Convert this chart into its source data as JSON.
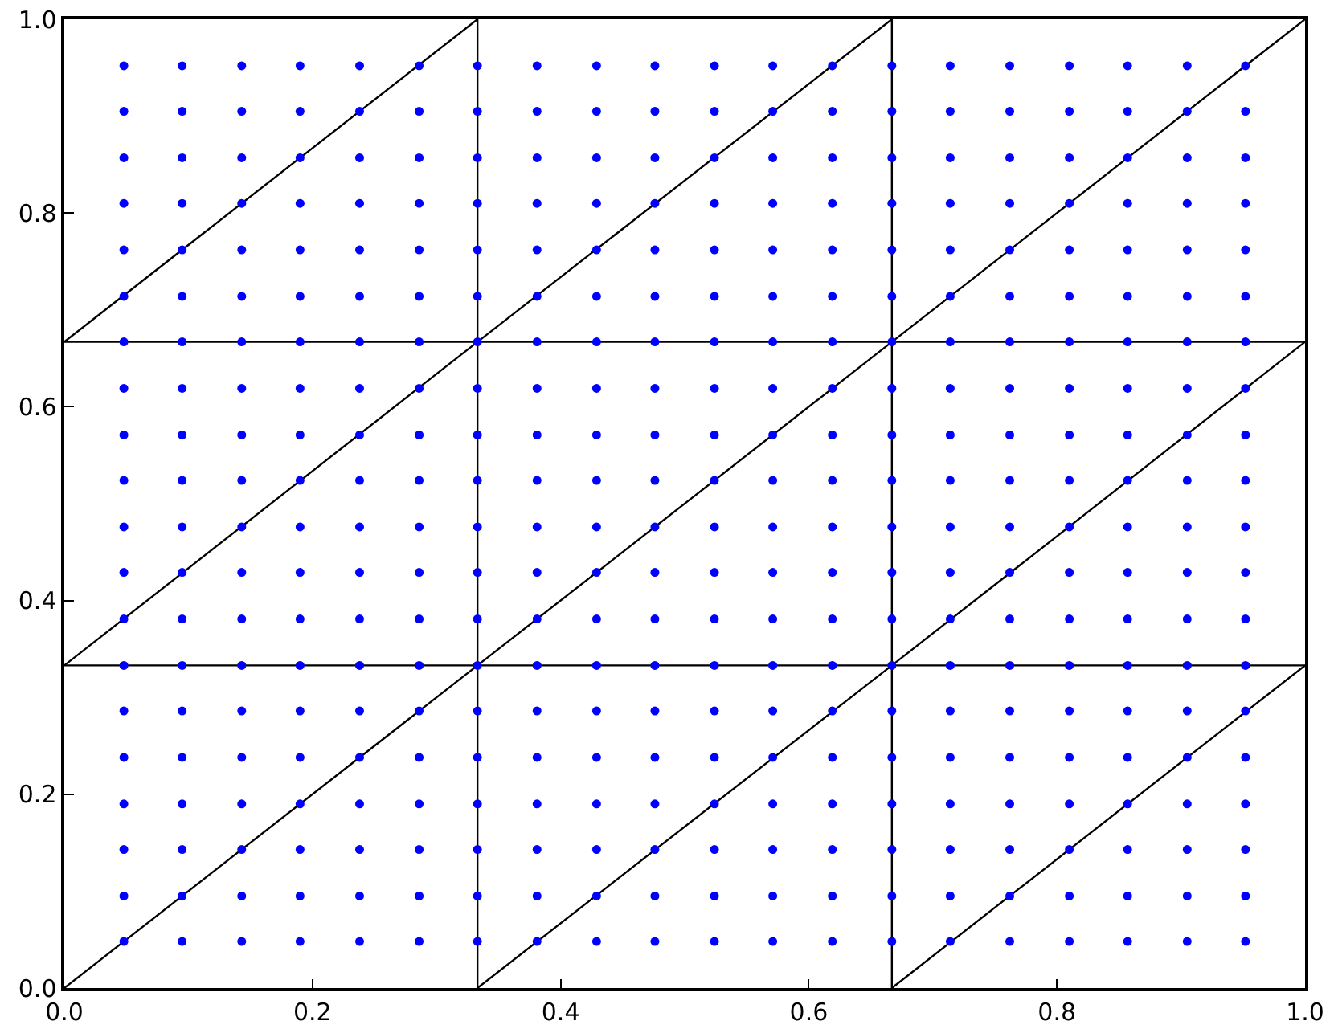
{
  "chart_data": {
    "type": "scatter",
    "x": [
      0.048,
      0.095,
      0.143,
      0.19,
      0.238,
      0.286,
      0.333,
      0.381,
      0.429,
      0.476,
      0.524,
      0.571,
      0.619,
      0.667,
      0.714,
      0.762,
      0.81,
      0.857,
      0.905,
      0.952
    ],
    "marker": "circle",
    "grid": false,
    "xlim": [
      0,
      1
    ],
    "ylim": [
      0,
      1
    ],
    "xticks": [
      {
        "value": 0,
        "label": "0.0"
      },
      0.2,
      0.4,
      0.6,
      0.8,
      {
        "value": 1,
        "label": "1.0"
      }
    ],
    "yticks": [
      {
        "value": 0,
        "label": "0.0"
      },
      0.2,
      0.4,
      0.6,
      0.8,
      {
        "value": 1,
        "label": "1.0"
      }
    ],
    "series": [
      {
        "color": "#0000ff",
        "values": [
          0.048,
          0.048,
          0.048,
          0.048,
          0.048,
          0.048,
          0.048,
          0.048,
          0.048,
          0.048,
          0.048,
          0.048,
          0.048,
          0.048,
          0.048,
          0.048,
          0.048,
          0.048,
          0.048,
          0.048
        ]
      },
      {
        "color": "#0000ff",
        "values": [
          0.095,
          0.095,
          0.095,
          0.095,
          0.095,
          0.095,
          0.095,
          0.095,
          0.095,
          0.095,
          0.095,
          0.095,
          0.095,
          0.095,
          0.095,
          0.095,
          0.095,
          0.095,
          0.095,
          0.095
        ]
      },
      {
        "color": "#0000ff",
        "values": [
          0.143,
          0.143,
          0.143,
          0.143,
          0.143,
          0.143,
          0.143,
          0.143,
          0.143,
          0.143,
          0.143,
          0.143,
          0.143,
          0.143,
          0.143,
          0.143,
          0.143,
          0.143,
          0.143,
          0.143
        ]
      },
      {
        "color": "#0000ff",
        "values": [
          0.19,
          0.19,
          0.19,
          0.19,
          0.19,
          0.19,
          0.19,
          0.19,
          0.19,
          0.19,
          0.19,
          0.19,
          0.19,
          0.19,
          0.19,
          0.19,
          0.19,
          0.19,
          0.19,
          0.19
        ]
      },
      {
        "color": "#0000ff",
        "values": [
          0.238,
          0.238,
          0.238,
          0.238,
          0.238,
          0.238,
          0.238,
          0.238,
          0.238,
          0.238,
          0.238,
          0.238,
          0.238,
          0.238,
          0.238,
          0.238,
          0.238,
          0.238,
          0.238,
          0.238
        ]
      },
      {
        "color": "#0000ff",
        "values": [
          0.286,
          0.286,
          0.286,
          0.286,
          0.286,
          0.286,
          0.286,
          0.286,
          0.286,
          0.286,
          0.286,
          0.286,
          0.286,
          0.286,
          0.286,
          0.286,
          0.286,
          0.286,
          0.286,
          0.286
        ]
      },
      {
        "color": "#0000ff",
        "values": [
          0.333,
          0.333,
          0.333,
          0.333,
          0.333,
          0.333,
          0.333,
          0.333,
          0.333,
          0.333,
          0.333,
          0.333,
          0.333,
          0.333,
          0.333,
          0.333,
          0.333,
          0.333,
          0.333,
          0.333
        ]
      },
      {
        "color": "#0000ff",
        "values": [
          0.381,
          0.381,
          0.381,
          0.381,
          0.381,
          0.381,
          0.381,
          0.381,
          0.381,
          0.381,
          0.381,
          0.381,
          0.381,
          0.381,
          0.381,
          0.381,
          0.381,
          0.381,
          0.381,
          0.381
        ]
      },
      {
        "color": "#0000ff",
        "values": [
          0.429,
          0.429,
          0.429,
          0.429,
          0.429,
          0.429,
          0.429,
          0.429,
          0.429,
          0.429,
          0.429,
          0.429,
          0.429,
          0.429,
          0.429,
          0.429,
          0.429,
          0.429,
          0.429,
          0.429
        ]
      },
      {
        "color": "#0000ff",
        "values": [
          0.476,
          0.476,
          0.476,
          0.476,
          0.476,
          0.476,
          0.476,
          0.476,
          0.476,
          0.476,
          0.476,
          0.476,
          0.476,
          0.476,
          0.476,
          0.476,
          0.476,
          0.476,
          0.476,
          0.476
        ]
      },
      {
        "color": "#0000ff",
        "values": [
          0.524,
          0.524,
          0.524,
          0.524,
          0.524,
          0.524,
          0.524,
          0.524,
          0.524,
          0.524,
          0.524,
          0.524,
          0.524,
          0.524,
          0.524,
          0.524,
          0.524,
          0.524,
          0.524,
          0.524
        ]
      },
      {
        "color": "#0000ff",
        "values": [
          0.571,
          0.571,
          0.571,
          0.571,
          0.571,
          0.571,
          0.571,
          0.571,
          0.571,
          0.571,
          0.571,
          0.571,
          0.571,
          0.571,
          0.571,
          0.571,
          0.571,
          0.571,
          0.571,
          0.571
        ]
      },
      {
        "color": "#0000ff",
        "values": [
          0.619,
          0.619,
          0.619,
          0.619,
          0.619,
          0.619,
          0.619,
          0.619,
          0.619,
          0.619,
          0.619,
          0.619,
          0.619,
          0.619,
          0.619,
          0.619,
          0.619,
          0.619,
          0.619,
          0.619
        ]
      },
      {
        "color": "#0000ff",
        "values": [
          0.667,
          0.667,
          0.667,
          0.667,
          0.667,
          0.667,
          0.667,
          0.667,
          0.667,
          0.667,
          0.667,
          0.667,
          0.667,
          0.667,
          0.667,
          0.667,
          0.667,
          0.667,
          0.667,
          0.667
        ]
      },
      {
        "color": "#0000ff",
        "values": [
          0.714,
          0.714,
          0.714,
          0.714,
          0.714,
          0.714,
          0.714,
          0.714,
          0.714,
          0.714,
          0.714,
          0.714,
          0.714,
          0.714,
          0.714,
          0.714,
          0.714,
          0.714,
          0.714,
          0.714
        ]
      },
      {
        "color": "#0000ff",
        "values": [
          0.762,
          0.762,
          0.762,
          0.762,
          0.762,
          0.762,
          0.762,
          0.762,
          0.762,
          0.762,
          0.762,
          0.762,
          0.762,
          0.762,
          0.762,
          0.762,
          0.762,
          0.762,
          0.762,
          0.762
        ]
      },
      {
        "color": "#0000ff",
        "values": [
          0.81,
          0.81,
          0.81,
          0.81,
          0.81,
          0.81,
          0.81,
          0.81,
          0.81,
          0.81,
          0.81,
          0.81,
          0.81,
          0.81,
          0.81,
          0.81,
          0.81,
          0.81,
          0.81,
          0.81
        ]
      },
      {
        "color": "#0000ff",
        "values": [
          0.857,
          0.857,
          0.857,
          0.857,
          0.857,
          0.857,
          0.857,
          0.857,
          0.857,
          0.857,
          0.857,
          0.857,
          0.857,
          0.857,
          0.857,
          0.857,
          0.857,
          0.857,
          0.857,
          0.857
        ]
      },
      {
        "color": "#0000ff",
        "values": [
          0.905,
          0.905,
          0.905,
          0.905,
          0.905,
          0.905,
          0.905,
          0.905,
          0.905,
          0.905,
          0.905,
          0.905,
          0.905,
          0.905,
          0.905,
          0.905,
          0.905,
          0.905,
          0.905,
          0.905
        ]
      },
      {
        "color": "#0000ff",
        "values": [
          0.952,
          0.952,
          0.952,
          0.952,
          0.952,
          0.952,
          0.952,
          0.952,
          0.952,
          0.952,
          0.952,
          0.952,
          0.952,
          0.952,
          0.952,
          0.952,
          0.952,
          0.952,
          0.952,
          0.952
        ]
      },
      {
        "type": "line",
        "marker": "none",
        "color": "#000000",
        "x": [
          0,
          0.333
        ],
        "values": [
          0,
          0.333
        ]
      },
      {
        "type": "line",
        "marker": "none",
        "color": "#000000",
        "x": [
          0.333,
          0.667
        ],
        "values": [
          0,
          0.333
        ]
      },
      {
        "type": "line",
        "marker": "none",
        "color": "#000000",
        "x": [
          0.667,
          1
        ],
        "values": [
          0,
          0.333
        ]
      },
      {
        "type": "line",
        "marker": "none",
        "color": "#000000",
        "x": [
          0,
          0.333
        ],
        "values": [
          0.333,
          0.667
        ]
      },
      {
        "type": "line",
        "marker": "none",
        "color": "#000000",
        "x": [
          0.333,
          0.667
        ],
        "values": [
          0.333,
          0.667
        ]
      },
      {
        "type": "line",
        "marker": "none",
        "color": "#000000",
        "x": [
          0.667,
          1
        ],
        "values": [
          0.333,
          0.667
        ]
      },
      {
        "type": "line",
        "marker": "none",
        "color": "#000000",
        "x": [
          0,
          0.333
        ],
        "values": [
          0.667,
          1
        ]
      },
      {
        "type": "line",
        "marker": "none",
        "color": "#000000",
        "x": [
          0.333,
          0.667
        ],
        "values": [
          0.667,
          1
        ]
      },
      {
        "type": "line",
        "marker": "none",
        "color": "#000000",
        "x": [
          0.667,
          1
        ],
        "values": [
          0.667,
          1
        ]
      },
      {
        "type": "line",
        "marker": "none",
        "color": "#000000",
        "x": [
          0.333,
          0.333
        ],
        "values": [
          0,
          1
        ]
      },
      {
        "type": "line",
        "marker": "none",
        "color": "#000000",
        "x": [
          0.667,
          0.667
        ],
        "values": [
          0,
          1
        ]
      },
      {
        "type": "line",
        "marker": "none",
        "color": "#000000",
        "x": [
          0,
          1
        ],
        "values": [
          0.333,
          0.333
        ]
      },
      {
        "type": "line",
        "marker": "none",
        "color": "#000000",
        "x": [
          0,
          1
        ],
        "values": [
          0.667,
          0.667
        ]
      }
    ]
  }
}
